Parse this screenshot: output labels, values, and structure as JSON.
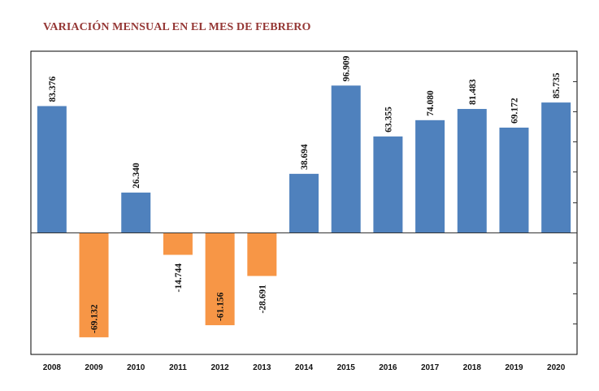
{
  "chart_data": {
    "type": "bar",
    "title": "VARIACIÓN MENSUAL EN EL MES DE FEBRERO",
    "xlabel": "",
    "ylabel": "",
    "categories": [
      "2008",
      "2009",
      "2010",
      "2011",
      "2012",
      "2013",
      "2014",
      "2015",
      "2016",
      "2017",
      "2018",
      "2019",
      "2020"
    ],
    "values": [
      83376,
      -69132,
      26340,
      -14744,
      -61156,
      -28691,
      38694,
      96909,
      63355,
      74080,
      81483,
      69172,
      85735
    ],
    "data_labels": [
      "83.376",
      "-69.132",
      "26.340",
      "-14.744",
      "-61.156",
      "-28.691",
      "38.694",
      "96.909",
      "63.355",
      "74.080",
      "81.483",
      "69.172",
      "85.735"
    ],
    "ylim": [
      -80000,
      120000
    ],
    "y_tick_step": 20000,
    "y_tick_labels_visible": false,
    "grid": false,
    "legend": "none",
    "colors": {
      "positive": "#4F81BD",
      "negative": "#F79646",
      "title": "#953735",
      "axis": "#333333",
      "frame": "#000000"
    }
  }
}
